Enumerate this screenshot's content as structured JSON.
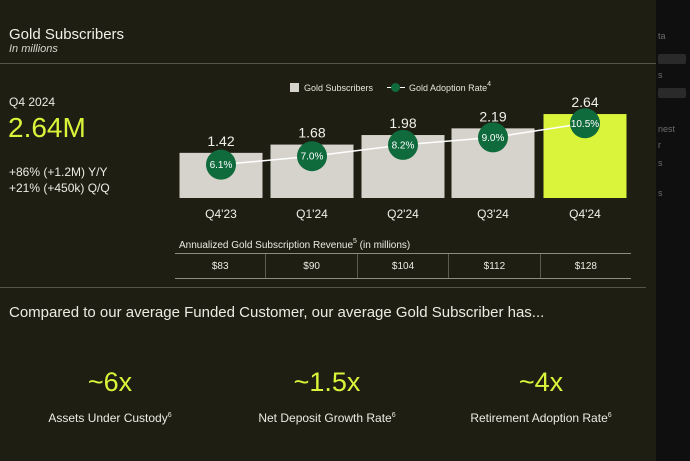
{
  "header": {
    "title": "Gold Subscribers",
    "subtitle": "In millions"
  },
  "summary": {
    "period": "Q4 2024",
    "value": "2.64M",
    "yoy": "+86% (+1.2M) Y/Y",
    "qoq": "+21% (+450k) Q/Q"
  },
  "legend": {
    "bars_label": "Gold Subscribers",
    "line_label": "Gold Adoption Rate",
    "line_note": "4"
  },
  "chart_data": {
    "type": "bar",
    "title": "Gold Subscribers",
    "subtitle": "In millions",
    "categories": [
      "Q4'23",
      "Q1'24",
      "Q2'24",
      "Q3'24",
      "Q4'24"
    ],
    "series": [
      {
        "name": "Gold Subscribers",
        "type": "bar",
        "values": [
          1.42,
          1.68,
          1.98,
          2.19,
          2.64
        ],
        "labels": [
          "1.42",
          "1.68",
          "1.98",
          "2.19",
          "2.64"
        ]
      },
      {
        "name": "Gold Adoption Rate",
        "type": "line",
        "values": [
          6.1,
          7.0,
          8.2,
          9.0,
          10.5
        ],
        "labels": [
          "6.1%",
          "7.0%",
          "8.2%",
          "9.0%",
          "10.5%"
        ]
      }
    ],
    "highlight_index": 4,
    "legend_position": "top",
    "grid": false
  },
  "revenue": {
    "title": "Annualized Gold Subscription Revenue",
    "note": "5",
    "suffix": " (in millions)",
    "values": [
      "$83",
      "$90",
      "$104",
      "$112",
      "$128"
    ]
  },
  "comparison": {
    "heading": "Compared to our average Funded Customer, our average Gold Subscriber has...",
    "stats": [
      {
        "value": "~6x",
        "label": "Assets Under Custody",
        "note": "6"
      },
      {
        "value": "~1.5x",
        "label": "Net Deposit Growth Rate",
        "note": "6"
      },
      {
        "value": "~4x",
        "label": "Retirement Adoption Rate",
        "note": "6"
      }
    ]
  },
  "colors": {
    "background": "#1f1e12",
    "bar": "#d5d3cb",
    "bar_highlight": "#d9f43a",
    "rate_circle": "#0f6a3c",
    "accent_text": "#d9f43a"
  },
  "side_panel": {
    "fragments": [
      "ta",
      "s",
      "nest",
      "r",
      "s",
      "s"
    ]
  }
}
